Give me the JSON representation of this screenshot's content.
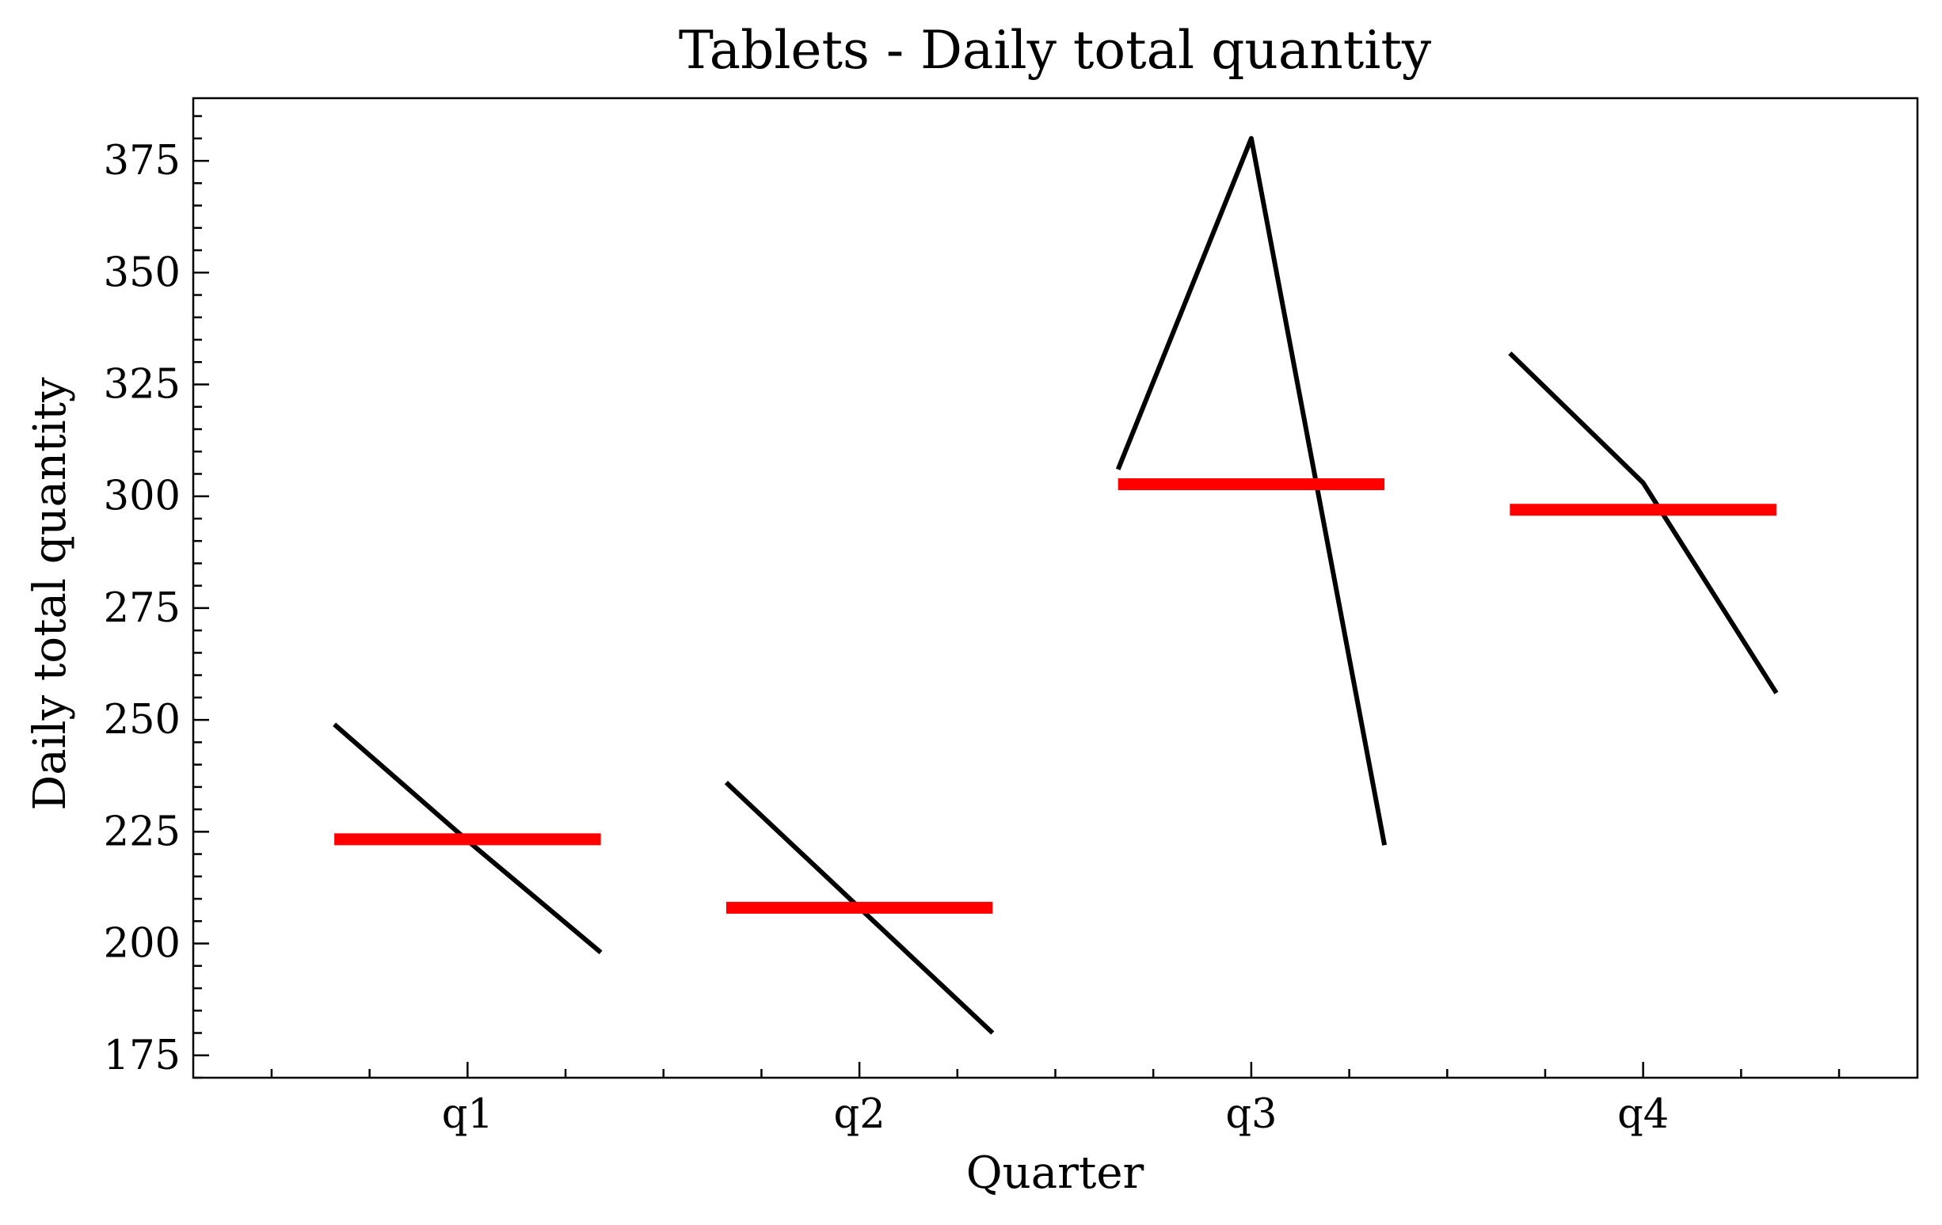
{
  "chart_data": {
    "type": "line",
    "title": "Tablets - Daily total quantity",
    "xlabel": "Quarter",
    "ylabel": "Daily total quantity",
    "categories": [
      "q1",
      "q2",
      "q3",
      "q4"
    ],
    "ylim": [
      170,
      389
    ],
    "yticks": [
      175,
      200,
      225,
      250,
      275,
      300,
      325,
      350,
      375
    ],
    "yminor_step": 5,
    "xminor_step": 0.25,
    "grid": false,
    "legend": "none",
    "groups": [
      {
        "category": "q1",
        "values": [
          249,
          223,
          198
        ],
        "mean": 223.3
      },
      {
        "category": "q2",
        "values": [
          236,
          208,
          180
        ],
        "mean": 208
      },
      {
        "category": "q3",
        "values": [
          306,
          380,
          222
        ],
        "mean": 302.7
      },
      {
        "category": "q4",
        "values": [
          332,
          303,
          256
        ],
        "mean": 297
      }
    ],
    "colors": {
      "line": "#000000",
      "mean": "#ff0000",
      "axis": "#000000"
    }
  }
}
